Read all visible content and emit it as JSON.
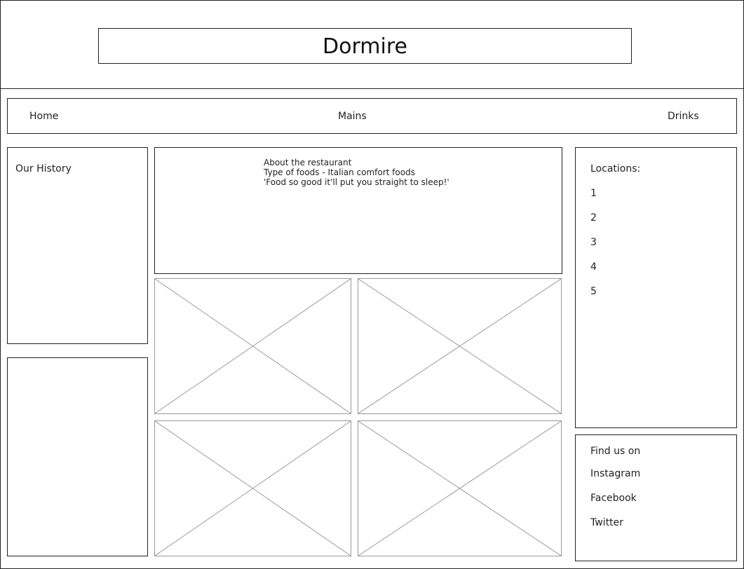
{
  "header": {
    "title": "Dormire"
  },
  "nav": {
    "items": [
      "Home",
      "Mains",
      "Drinks"
    ]
  },
  "sidebar_left": {
    "history_label": "Our History"
  },
  "about": {
    "lines": [
      "About the restaurant",
      "Type of foods - Italian comfort foods",
      "'Food so good it'll put you straight to sleep!'"
    ]
  },
  "locations": {
    "label": "Locations:",
    "items": [
      "1",
      "2",
      "3",
      "4",
      "5"
    ]
  },
  "social": {
    "label": "Find us on",
    "links": [
      "Instagram",
      "Facebook",
      "Twitter"
    ]
  }
}
